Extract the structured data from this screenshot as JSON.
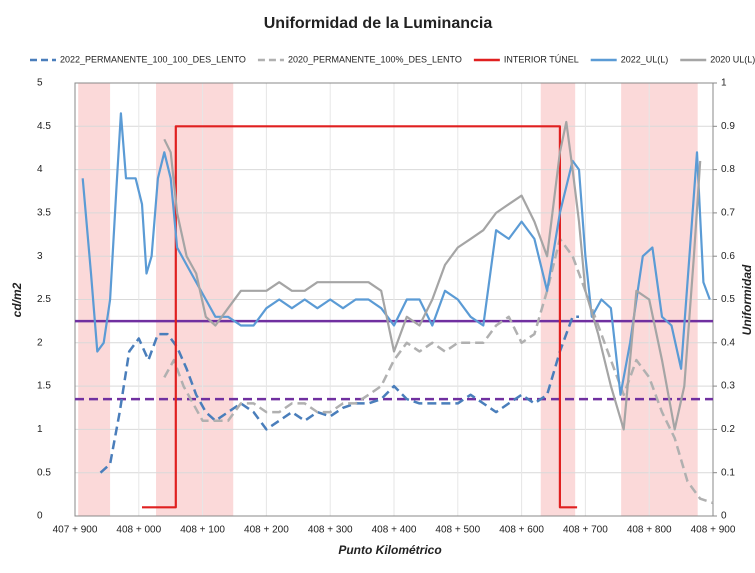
{
  "chart_data": {
    "type": "line",
    "title": "Uniformidad de la Luminancia",
    "x_label": "Punto Kilométrico",
    "y_label": "cd/m2",
    "y2_label": "Uniformidad",
    "xlim": [
      407900,
      408900
    ],
    "xticks": [
      {
        "value": 407900,
        "label": "407 + 900"
      },
      {
        "value": 408000,
        "label": "408 + 000"
      },
      {
        "value": 408100,
        "label": "408 + 100"
      },
      {
        "value": 408200,
        "label": "408 + 200"
      },
      {
        "value": 408300,
        "label": "408 + 300"
      },
      {
        "value": 408400,
        "label": "408 + 400"
      },
      {
        "value": 408500,
        "label": "408 + 500"
      },
      {
        "value": 408600,
        "label": "408 + 600"
      },
      {
        "value": 408700,
        "label": "408 + 700"
      },
      {
        "value": 408800,
        "label": "408 + 800"
      },
      {
        "value": 408900,
        "label": "408 + 900"
      }
    ],
    "ylim": [
      0,
      5
    ],
    "yticks": [
      0,
      0.5,
      1,
      1.5,
      2,
      2.5,
      3,
      3.5,
      4,
      4.5,
      5
    ],
    "y2lim": [
      0,
      1
    ],
    "y2ticks": [
      0,
      0.1,
      0.2,
      0.3,
      0.4,
      0.5,
      0.6,
      0.7,
      0.8,
      0.9,
      1
    ],
    "grid": true,
    "legend": "top",
    "shaded_regions": [
      {
        "x": [
          407905,
          407955
        ],
        "color": "#f4a0a0"
      },
      {
        "x": [
          408027,
          408148
        ],
        "color": "#f4a0a0"
      },
      {
        "x": [
          408630,
          408684
        ],
        "color": "#f4a0a0"
      },
      {
        "x": [
          408756,
          408876
        ],
        "color": "#f4a0a0"
      }
    ],
    "reference_lines": [
      {
        "value": 2.25,
        "color": "#7030a0",
        "style": "solid"
      },
      {
        "value": 1.35,
        "color": "#7030a0",
        "style": "dashed"
      }
    ],
    "series": [
      {
        "name": "2022_PERMANENTE_100_100_DES_LENTO",
        "color": "#4a7ebb",
        "style": "dashed",
        "x": [
          407940,
          407955,
          407970,
          407985,
          408000,
          408015,
          408030,
          408045,
          408060,
          408075,
          408090,
          408105,
          408120,
          408140,
          408160,
          408180,
          408200,
          408220,
          408240,
          408260,
          408280,
          408300,
          408320,
          408340,
          408360,
          408380,
          408400,
          408420,
          408440,
          408460,
          408480,
          408500,
          408520,
          408540,
          408560,
          408580,
          408600,
          408620,
          408640,
          408660,
          408680,
          408690
        ],
        "values": [
          0.5,
          0.6,
          1.2,
          1.9,
          2.05,
          1.8,
          2.1,
          2.1,
          1.95,
          1.7,
          1.4,
          1.2,
          1.1,
          1.2,
          1.3,
          1.2,
          1.0,
          1.1,
          1.2,
          1.1,
          1.2,
          1.15,
          1.25,
          1.3,
          1.3,
          1.35,
          1.5,
          1.35,
          1.3,
          1.3,
          1.3,
          1.3,
          1.4,
          1.3,
          1.2,
          1.3,
          1.4,
          1.3,
          1.4,
          1.9,
          2.3,
          2.3
        ]
      },
      {
        "name": "2020_PERMANENTE_100%_DES_LENTO",
        "color": "#b0b0b0",
        "style": "dashed",
        "x": [
          408040,
          408055,
          408070,
          408085,
          408100,
          408120,
          408140,
          408160,
          408180,
          408200,
          408220,
          408240,
          408260,
          408280,
          408300,
          408320,
          408340,
          408360,
          408380,
          408400,
          408420,
          408440,
          408460,
          408480,
          408500,
          408520,
          408540,
          408560,
          408580,
          408600,
          408620,
          408640,
          408660,
          408680,
          408700,
          408720,
          408740,
          408760,
          408780,
          408800,
          408820,
          408840,
          408860,
          408880,
          408900
        ],
        "values": [
          1.6,
          1.8,
          1.5,
          1.3,
          1.1,
          1.1,
          1.1,
          1.3,
          1.3,
          1.2,
          1.2,
          1.3,
          1.3,
          1.2,
          1.2,
          1.3,
          1.3,
          1.4,
          1.5,
          1.8,
          2.0,
          1.9,
          2.0,
          1.9,
          2.0,
          2.0,
          2.0,
          2.2,
          2.3,
          2.0,
          2.1,
          2.6,
          3.2,
          3.0,
          2.6,
          2.2,
          1.8,
          1.4,
          1.8,
          1.6,
          1.2,
          0.9,
          0.4,
          0.2,
          0.15
        ]
      },
      {
        "name": "INTERIOR TÚNEL",
        "color": "#e02020",
        "style": "solid",
        "x": [
          408005,
          408058,
          408058,
          408660,
          408660,
          408687
        ],
        "values": [
          0.1,
          0.1,
          4.5,
          4.5,
          0.1,
          0.1
        ]
      },
      {
        "name": "2022_UL(L)",
        "color": "#5b9bd5",
        "style": "solid",
        "axis": "y2",
        "x": [
          407912,
          407925,
          407935,
          407945,
          407955,
          407965,
          407972,
          407980,
          407995,
          408005,
          408012,
          408020,
          408030,
          408040,
          408050,
          408060,
          408075,
          408090,
          408105,
          408120,
          408140,
          408160,
          408180,
          408200,
          408220,
          408240,
          408260,
          408280,
          408300,
          408320,
          408340,
          408360,
          408380,
          408400,
          408420,
          408440,
          408460,
          408480,
          408500,
          408520,
          408540,
          408560,
          408580,
          408600,
          408620,
          408640,
          408660,
          408680,
          408690,
          408700,
          408710,
          408725,
          408740,
          408755,
          408770,
          408790,
          408805,
          408820,
          408835,
          408850,
          408865,
          408875,
          408885,
          408895
        ],
        "values": [
          0.78,
          0.56,
          0.38,
          0.4,
          0.5,
          0.76,
          0.93,
          0.78,
          0.78,
          0.72,
          0.56,
          0.6,
          0.78,
          0.84,
          0.78,
          0.62,
          0.58,
          0.54,
          0.5,
          0.46,
          0.46,
          0.44,
          0.44,
          0.48,
          0.5,
          0.48,
          0.5,
          0.48,
          0.5,
          0.48,
          0.5,
          0.5,
          0.48,
          0.44,
          0.5,
          0.5,
          0.44,
          0.52,
          0.5,
          0.46,
          0.44,
          0.66,
          0.64,
          0.68,
          0.64,
          0.52,
          0.7,
          0.82,
          0.8,
          0.6,
          0.46,
          0.5,
          0.48,
          0.28,
          0.4,
          0.6,
          0.62,
          0.46,
          0.44,
          0.34,
          0.64,
          0.84,
          0.54,
          0.5
        ]
      },
      {
        "name": "2020 UL(L)",
        "color": "#a5a5a5",
        "style": "solid",
        "axis": "y2",
        "x": [
          408040,
          408050,
          408060,
          408075,
          408090,
          408105,
          408120,
          408140,
          408160,
          408180,
          408200,
          408220,
          408240,
          408260,
          408280,
          408300,
          408320,
          408340,
          408360,
          408380,
          408400,
          408420,
          408440,
          408460,
          408480,
          408500,
          408520,
          408540,
          408560,
          408580,
          408600,
          408620,
          408640,
          408660,
          408670,
          408680,
          408690,
          408700,
          408720,
          408740,
          408760,
          408780,
          408800,
          408820,
          408840,
          408855,
          408870,
          408880
        ],
        "values": [
          0.87,
          0.84,
          0.7,
          0.6,
          0.56,
          0.46,
          0.44,
          0.48,
          0.52,
          0.52,
          0.52,
          0.54,
          0.52,
          0.52,
          0.54,
          0.54,
          0.54,
          0.54,
          0.54,
          0.52,
          0.38,
          0.46,
          0.44,
          0.5,
          0.58,
          0.62,
          0.64,
          0.66,
          0.7,
          0.72,
          0.74,
          0.68,
          0.6,
          0.84,
          0.91,
          0.8,
          0.68,
          0.52,
          0.42,
          0.3,
          0.2,
          0.52,
          0.5,
          0.36,
          0.2,
          0.3,
          0.6,
          0.82
        ]
      }
    ]
  }
}
